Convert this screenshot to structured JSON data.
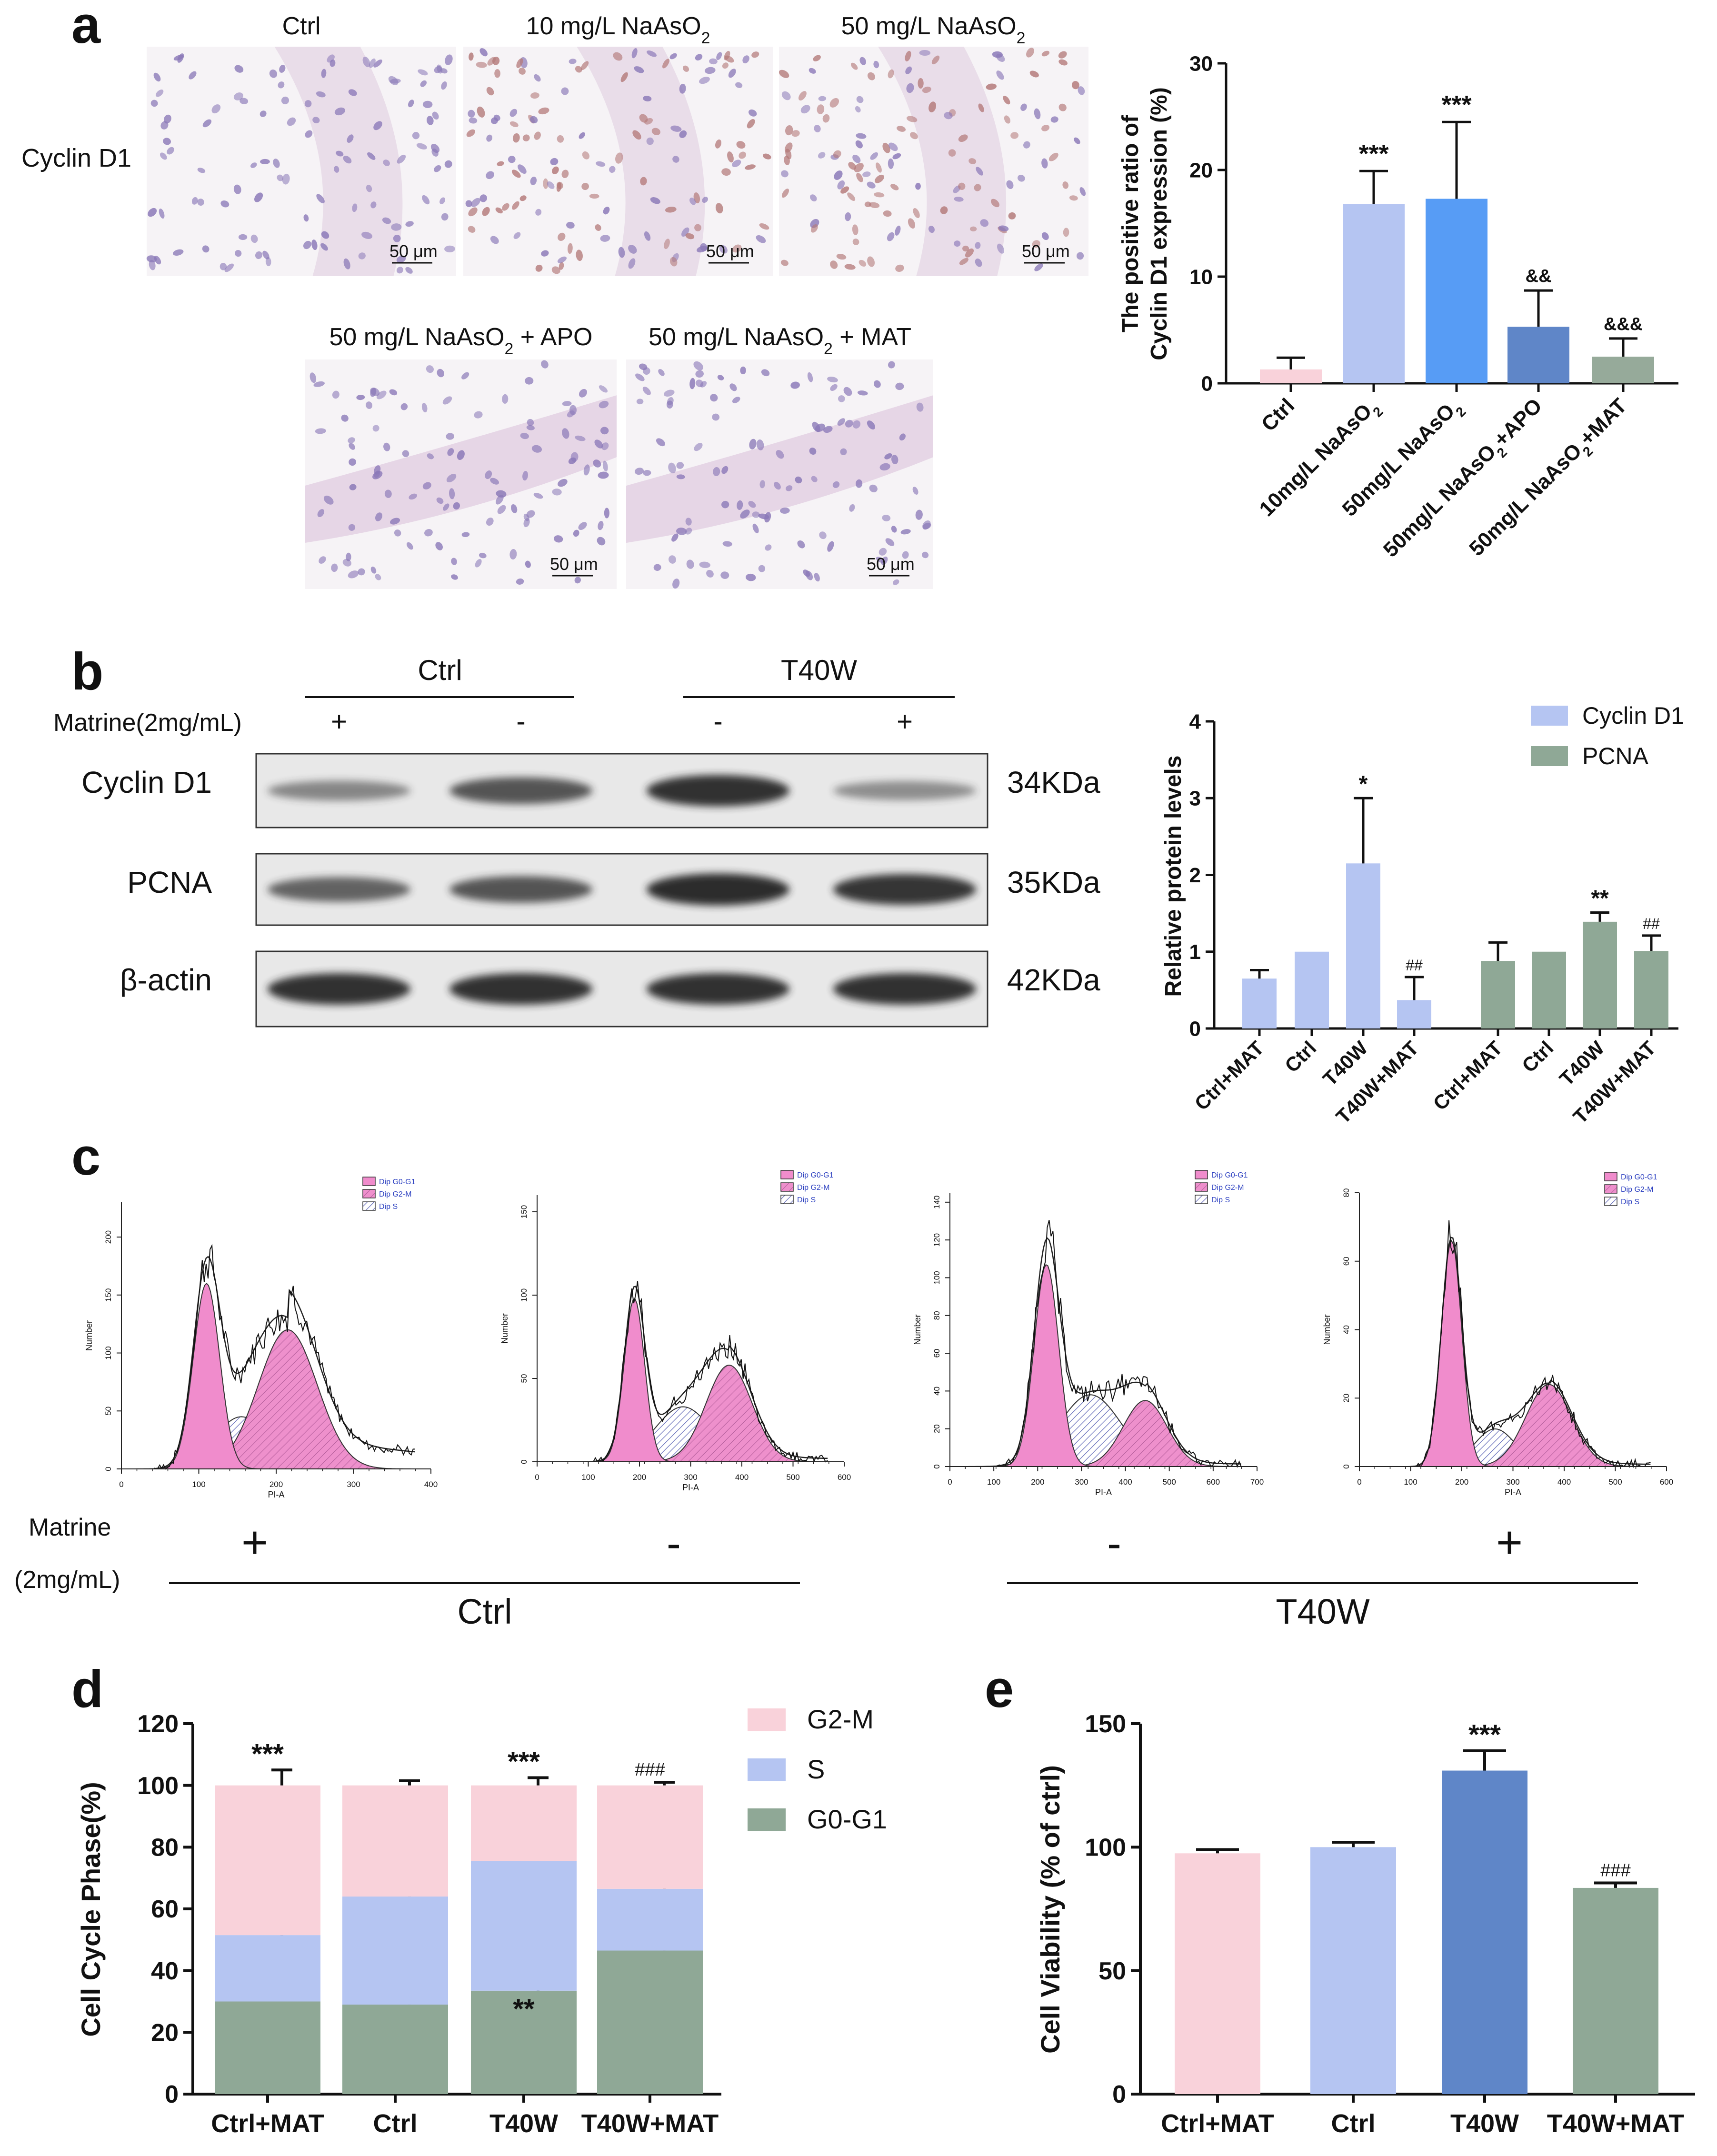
{
  "panels": {
    "a": "a",
    "b": "b",
    "c": "c",
    "d": "d",
    "e": "e"
  },
  "colors": {
    "pink": "#f9d2da",
    "lightblue": "#b5c5f2",
    "blue": "#579cf5",
    "steel": "#5f86c8",
    "green": "#8fa896",
    "dark": "#111111",
    "histo_bg": "#f6f3f6",
    "nucleus": "#8b79b8",
    "brown_nucleus": "#b47a7a",
    "blot_bg": "#e8e8e8",
    "band": "#2a2a2a"
  },
  "panel_a": {
    "row_label": "Cyclin D1",
    "scale_label": "50 μm",
    "images": [
      {
        "title": "Ctrl",
        "stain": "light"
      },
      {
        "title": "10 mg/L NaAsO",
        "sub": "2",
        "stain": "brown"
      },
      {
        "title": "50 mg/L NaAsO",
        "sub": "2",
        "stain": "brown"
      },
      {
        "title": "50 mg/L NaAsO",
        "sub": "2",
        "tail": " + APO",
        "stain": "light"
      },
      {
        "title": "50 mg/L NaAsO",
        "sub": "2",
        "tail": " + MAT",
        "stain": "light"
      }
    ],
    "chart_data": {
      "type": "bar",
      "ylabel": "The positive ratio of Cyclin D1 expression (%)",
      "ylabel_lines": [
        "The positive ratio of",
        "Cyclin D1 expression (%)"
      ],
      "categories": [
        {
          "text": "Ctrl"
        },
        {
          "text": "10mg/L NaAsO",
          "sub": "2"
        },
        {
          "text": "50mg/L NaAsO",
          "sub": "2"
        },
        {
          "text": "50mg/L NaAsO",
          "sub": "2",
          "tail": "+APO"
        },
        {
          "text": "50mg/L NaAsO",
          "sub": "2",
          "tail": "+MAT"
        }
      ],
      "values": [
        1.3,
        16.8,
        17.3,
        5.3,
        2.5
      ],
      "errors": [
        1.1,
        3.1,
        7.2,
        3.4,
        1.7
      ],
      "significance": [
        "",
        "***",
        "***",
        "&&",
        "&&&"
      ],
      "yticks": [
        0,
        10,
        20,
        30
      ],
      "ylim": [
        0,
        30
      ]
    }
  },
  "panel_b": {
    "groups": [
      "Ctrl",
      "T40W"
    ],
    "treatment_label": "Matrine(2mg/mL)",
    "treatments": [
      "+",
      "-",
      "-",
      "+"
    ],
    "blots": [
      {
        "name": "Cyclin D1",
        "size": "34KDa",
        "intensity": [
          0.35,
          0.7,
          0.95,
          0.3
        ]
      },
      {
        "name": "PCNA",
        "size": "35KDa",
        "intensity": [
          0.6,
          0.7,
          0.98,
          0.92
        ]
      },
      {
        "name": "β-actin",
        "size": "42KDa",
        "intensity": [
          0.95,
          0.95,
          0.95,
          0.95
        ]
      }
    ],
    "chart_data": {
      "type": "bar",
      "ylabel": "Relative protein levels",
      "categories": [
        "Ctrl+MAT",
        "Ctrl",
        "T40W",
        "T40W+MAT"
      ],
      "series": [
        {
          "name": "Cyclin D1",
          "values": [
            0.65,
            1.0,
            2.15,
            0.37
          ],
          "errors": [
            0.11,
            0.0,
            0.85,
            0.3
          ],
          "significance": [
            "",
            "",
            "*",
            "##"
          ]
        },
        {
          "name": "PCNA",
          "values": [
            0.88,
            1.0,
            1.39,
            1.01
          ],
          "errors": [
            0.24,
            0.0,
            0.12,
            0.2
          ],
          "significance": [
            "",
            "",
            "**",
            "##"
          ]
        }
      ],
      "yticks": [
        0,
        1,
        2,
        3,
        4
      ],
      "ylim": [
        0,
        4
      ],
      "legend": "top-right"
    }
  },
  "panel_c": {
    "legend": [
      "Dip G0-G1",
      "Dip G2-M",
      "Dip S"
    ],
    "xlabel": "PI-A",
    "ylabel": "Number",
    "treatment_label": [
      "Matrine",
      "(2mg/mL)"
    ],
    "treatments": [
      "+",
      "-",
      "-",
      "+"
    ],
    "groups": [
      "Ctrl",
      "T40W"
    ],
    "histograms": [
      {
        "xmax": 400,
        "xticks": [
          0,
          100,
          200,
          300,
          400
        ],
        "ymax": 230,
        "yticks": [
          0,
          50,
          100,
          150,
          200
        ],
        "g1": {
          "mu": 110,
          "sd": 17,
          "h": 160
        },
        "g2": {
          "mu": 215,
          "sd": 38,
          "h": 120
        },
        "s": {
          "mu": 155,
          "sd": 35,
          "h": 45
        },
        "tail": 25
      },
      {
        "xmax": 600,
        "xticks": [
          0,
          100,
          200,
          300,
          400,
          500,
          600
        ],
        "ymax": 160,
        "yticks": [
          0,
          50,
          100,
          150
        ],
        "g1": {
          "mu": 190,
          "sd": 20,
          "h": 98
        },
        "g2": {
          "mu": 375,
          "sd": 45,
          "h": 58
        },
        "s": {
          "mu": 285,
          "sd": 55,
          "h": 33
        },
        "tail": 3
      },
      {
        "xmax": 700,
        "xticks": [
          0,
          100,
          200,
          300,
          400,
          500,
          600,
          700
        ],
        "ymax": 145,
        "yticks": [
          0,
          20,
          40,
          60,
          80,
          100,
          120,
          140
        ],
        "g1": {
          "mu": 220,
          "sd": 28,
          "h": 107
        },
        "g2": {
          "mu": 445,
          "sd": 50,
          "h": 35
        },
        "s": {
          "mu": 320,
          "sd": 70,
          "h": 38
        },
        "tail": 2
      },
      {
        "xmax": 600,
        "xticks": [
          0,
          100,
          200,
          300,
          400,
          500,
          600
        ],
        "ymax": 80,
        "yticks": [
          0,
          20,
          40,
          60,
          80
        ],
        "g1": {
          "mu": 180,
          "sd": 20,
          "h": 66
        },
        "g2": {
          "mu": 370,
          "sd": 45,
          "h": 24
        },
        "s": {
          "mu": 265,
          "sd": 40,
          "h": 11
        },
        "tail": 1
      }
    ]
  },
  "panel_d": {
    "chart_data": {
      "type": "bar",
      "stacked": true,
      "ylabel": "Cell Cycle Phase(%)",
      "categories": [
        "Ctrl+MAT",
        "Ctrl",
        "T40W",
        "T40W+MAT"
      ],
      "series": [
        {
          "name": "G0-G1",
          "values": [
            30,
            29,
            33.5,
            46.5
          ],
          "errors": [
            2.5,
            2,
            1.5,
            1
          ],
          "significance": [
            "",
            "",
            "**",
            "###"
          ]
        },
        {
          "name": "S",
          "values": [
            21.5,
            35,
            42,
            20
          ],
          "errors": [
            2,
            2,
            3.5,
            1.5
          ],
          "significance": [
            "***",
            "",
            "**",
            "###"
          ]
        },
        {
          "name": "G2-M",
          "values": [
            48.5,
            36,
            24.5,
            33.5
          ],
          "errors": [
            5,
            1.5,
            2.5,
            1
          ],
          "significance": [
            "***",
            "",
            "***",
            "###"
          ]
        }
      ],
      "legend_order": [
        "G2-M",
        "S",
        "G0-G1"
      ],
      "yticks": [
        0,
        20,
        40,
        60,
        80,
        100,
        120
      ],
      "ylim": [
        0,
        120
      ],
      "legend": "right"
    }
  },
  "panel_e": {
    "chart_data": {
      "type": "bar",
      "ylabel": "Cell Viability (% of ctrl)",
      "categories": [
        "Ctrl+MAT",
        "Ctrl",
        "T40W",
        "T40W+MAT"
      ],
      "values": [
        97.5,
        100,
        131,
        83.5
      ],
      "errors": [
        1.5,
        2,
        8,
        2
      ],
      "significance": [
        "",
        "",
        "***",
        "###"
      ],
      "yticks": [
        0,
        50,
        100,
        150
      ],
      "ylim": [
        0,
        150
      ]
    }
  }
}
